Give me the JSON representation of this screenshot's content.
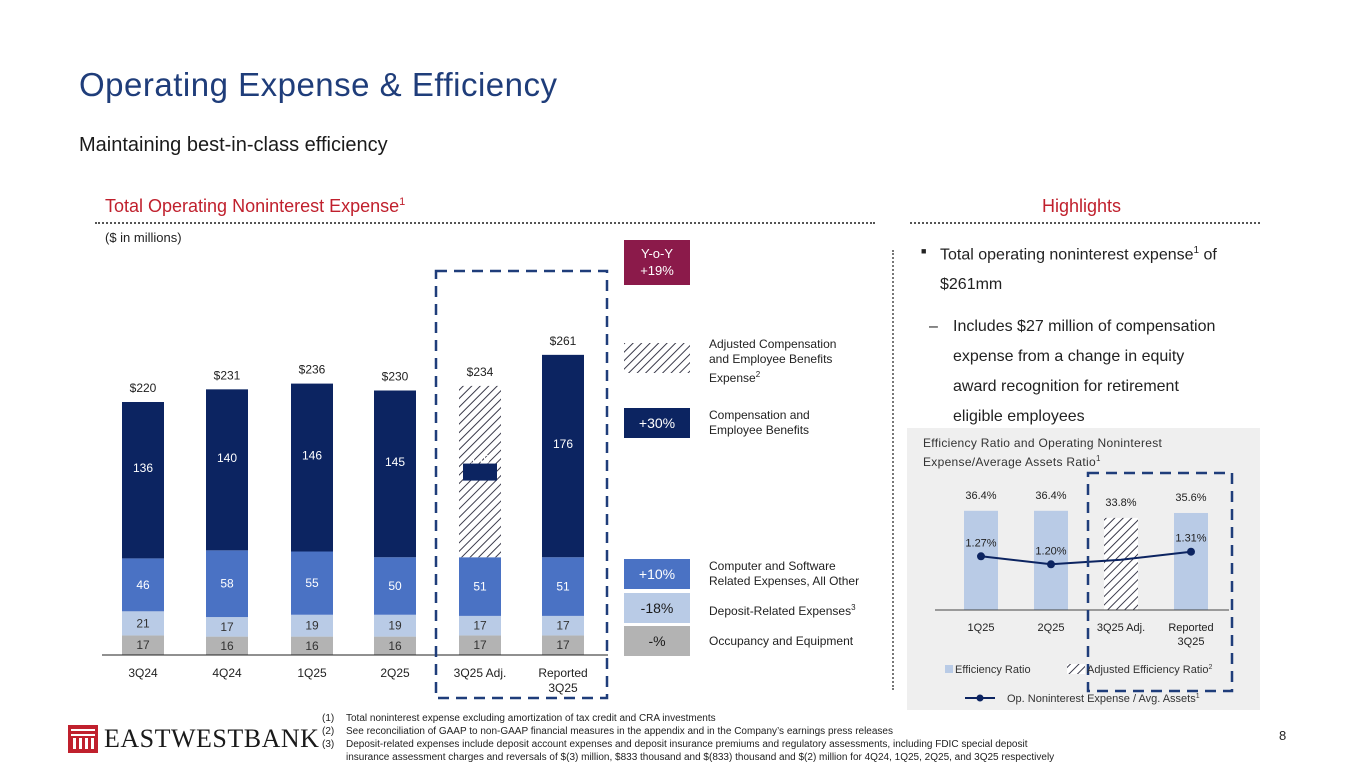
{
  "title": "Operating Expense & Efficiency",
  "subtitle": "Maintaining best-in-class efficiency",
  "left_section": {
    "title": "Total Operating Noninterest Expense",
    "sup": "1",
    "units": "($ in millions)"
  },
  "right_section": {
    "title": "Highlights"
  },
  "yoy": {
    "line1": "Y-o-Y",
    "line2": "+19%"
  },
  "legend": {
    "adjusted": {
      "label_a": "Adjusted Compensation",
      "label_b": "and Employee Benefits",
      "label_c": "Expense",
      "sup": "2"
    },
    "comp": {
      "pct": "+30%",
      "label_a": "Compensation and",
      "label_b": "Employee Benefits"
    },
    "computer": {
      "pct": "+10%",
      "label_a": "Computer and Software",
      "label_b": "Related Expenses, All Other"
    },
    "deposit": {
      "pct": "-18%",
      "label": "Deposit-Related Expenses",
      "sup": "3"
    },
    "occupancy": {
      "pct": "-%",
      "label": "Occupancy and Equipment"
    }
  },
  "highlights": {
    "bullet1": "Total operating noninterest expense",
    "bullet1_sup": "1",
    "bullet1_tail": " of",
    "bullet1_line2": "$261mm",
    "dash": "–",
    "sub1": "Includes $27 million of compensation",
    "sub2": "expense from a change in equity",
    "sub3": "award recognition for retirement",
    "sub4": "eligible employees"
  },
  "chart_data": [
    {
      "type": "bar",
      "stacked": true,
      "title": "Total Operating Noninterest Expense",
      "ylabel": "$ in millions",
      "categories": [
        "3Q24",
        "4Q24",
        "1Q25",
        "2Q25",
        "3Q25 Adj.",
        "Reported 3Q25"
      ],
      "series": [
        {
          "name": "Occupancy and Equipment",
          "color": "#b3b3b3",
          "values": [
            17,
            16,
            16,
            16,
            17,
            17
          ]
        },
        {
          "name": "Deposit-Related Expenses",
          "color": "#b9cbe6",
          "values": [
            21,
            17,
            19,
            19,
            17,
            17
          ]
        },
        {
          "name": "Computer and Software Related Expenses, All Other",
          "color": "#4a72c4",
          "values": [
            46,
            58,
            55,
            50,
            51,
            51
          ]
        },
        {
          "name": "Compensation and Employee Benefits",
          "color": "#0c2461",
          "values": [
            136,
            140,
            146,
            145,
            149,
            176
          ]
        }
      ],
      "hatched_category": "3Q25 Adj.",
      "totals": [
        "$220",
        "$231",
        "$236",
        "$230",
        "$234",
        "$261"
      ],
      "ylim": [
        0,
        270
      ]
    },
    {
      "type": "bar+line",
      "title": "Efficiency Ratio and Operating Noninterest Expense/Average Assets Ratio",
      "title_sup": "1",
      "categories": [
        "1Q25",
        "2Q25",
        "3Q25 Adj.",
        "Reported 3Q25"
      ],
      "bar_series": {
        "name": "Efficiency Ratio",
        "color": "#b9cbe6",
        "values": [
          36.4,
          36.4,
          33.8,
          35.6
        ],
        "labels": [
          "36.4%",
          "36.4%",
          "33.8%",
          "35.6%"
        ]
      },
      "line_series": {
        "name": "Op. Noninterest Expense / Avg. Assets",
        "color": "#0c2461",
        "values": [
          1.27,
          1.2,
          1.24,
          1.31
        ],
        "labels": [
          "1.27%",
          "1.20%",
          "",
          "1.31%"
        ]
      },
      "adjusted_legend": "Adjusted Efficiency Ratio",
      "adjusted_sup": "2",
      "line_sup": "1",
      "bar_ylim": [
        0,
        40
      ],
      "line_ylim": [
        0.8,
        1.5
      ]
    }
  ],
  "footnotes": [
    {
      "num": "(1)",
      "text": "Total noninterest expense excluding amortization of tax credit and CRA investments"
    },
    {
      "num": "(2)",
      "text": "See reconciliation of GAAP to non-GAAP financial measures in the appendix and in the Company’s earnings press releases"
    },
    {
      "num": "(3)",
      "text": "Deposit-related expenses include deposit account expenses and deposit insurance premiums and regulatory assessments, including FDIC special deposit"
    },
    {
      "num": "",
      "text": "insurance assessment charges and reversals of $(3) million, $833 thousand and $(833) thousand and $(2) million for 4Q24, 1Q25, 2Q25, and 3Q25 respectively"
    }
  ],
  "logo": {
    "text": "EASTWESTBANK"
  },
  "page_number": "8",
  "colors": {
    "navy": "#0c2461",
    "mid_blue": "#4a72c4",
    "light_blue": "#b9cbe6",
    "gray": "#b3b3b3",
    "red": "#c0202d",
    "maroon": "#8b1a4a",
    "title_blue": "#1f3d7a"
  }
}
